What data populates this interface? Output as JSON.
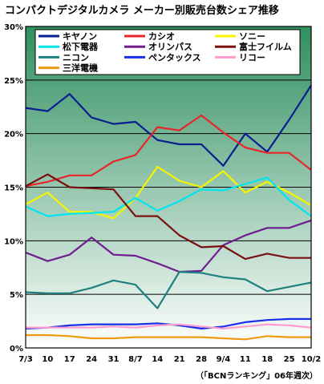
{
  "chart_data": {
    "type": "line",
    "title": "コンパクトデジタルカメラ メーカー別販売台数シェア推移",
    "source_note": "（「BCNランキング」06年週次）",
    "x": [
      "7/3",
      "10",
      "17",
      "24",
      "31",
      "8/7",
      "14",
      "21",
      "28",
      "9/4",
      "11",
      "18",
      "25",
      "10/2"
    ],
    "ytick_labels": [
      "0%",
      "5%",
      "10%",
      "15%",
      "20%",
      "25%",
      "30%"
    ],
    "ylim": [
      0,
      30
    ],
    "grid": "horizontal",
    "legend_position": "top",
    "plot_background": [
      "#ffffff",
      "#2f8f5f"
    ],
    "series": [
      {
        "name": "キヤノン",
        "color": "#0a1f8f",
        "values": [
          22.4,
          22.1,
          23.7,
          21.5,
          20.9,
          21.1,
          19.4,
          19.0,
          19.0,
          17.0,
          20.0,
          18.3,
          21.3,
          24.5
        ]
      },
      {
        "name": "カシオ",
        "color": "#e8262a",
        "values": [
          15.1,
          15.5,
          16.1,
          16.1,
          17.4,
          18.0,
          20.6,
          20.3,
          21.7,
          20.1,
          18.7,
          18.2,
          18.2,
          16.6
        ]
      },
      {
        "name": "ソニー",
        "color": "#f5f500",
        "values": [
          13.4,
          14.5,
          12.7,
          12.7,
          12.1,
          14.0,
          16.9,
          15.6,
          15.0,
          16.5,
          14.5,
          15.5,
          14.5,
          13.3
        ]
      },
      {
        "name": "松下電器",
        "color": "#00e5ee",
        "values": [
          13.2,
          12.3,
          12.5,
          12.6,
          12.7,
          14.0,
          12.8,
          13.7,
          14.8,
          14.7,
          15.3,
          15.9,
          13.8,
          12.3
        ]
      },
      {
        "name": "オリンパス",
        "color": "#6e1c8e",
        "values": [
          8.9,
          8.1,
          8.7,
          10.3,
          8.7,
          8.6,
          7.9,
          7.1,
          7.2,
          9.6,
          10.5,
          11.2,
          11.2,
          11.9
        ]
      },
      {
        "name": "富士フイルム",
        "color": "#7a1010",
        "values": [
          15.1,
          16.2,
          15.0,
          14.9,
          14.8,
          12.3,
          12.3,
          10.5,
          9.4,
          9.5,
          8.3,
          8.8,
          8.4,
          8.4
        ]
      },
      {
        "name": "ニコン",
        "color": "#1f8080",
        "values": [
          5.2,
          5.1,
          5.1,
          5.6,
          6.3,
          5.9,
          3.7,
          7.1,
          7.0,
          6.6,
          6.4,
          5.3,
          5.7,
          6.1
        ]
      },
      {
        "name": "ペンタックス",
        "color": "#1530e8",
        "values": [
          1.8,
          1.9,
          2.1,
          2.2,
          2.2,
          2.2,
          2.3,
          2.1,
          1.8,
          2.0,
          2.4,
          2.6,
          2.7,
          2.7
        ]
      },
      {
        "name": "リコー",
        "color": "#ff9ccf",
        "values": [
          1.9,
          1.9,
          1.9,
          1.9,
          2.0,
          1.9,
          2.1,
          2.2,
          2.0,
          1.8,
          2.0,
          2.2,
          2.1,
          1.9
        ]
      },
      {
        "name": "三洋電機",
        "color": "#f09a10",
        "values": [
          1.2,
          1.2,
          1.1,
          0.9,
          0.9,
          1.0,
          1.0,
          1.0,
          1.0,
          0.9,
          0.8,
          1.1,
          1.0,
          1.0
        ]
      }
    ]
  }
}
